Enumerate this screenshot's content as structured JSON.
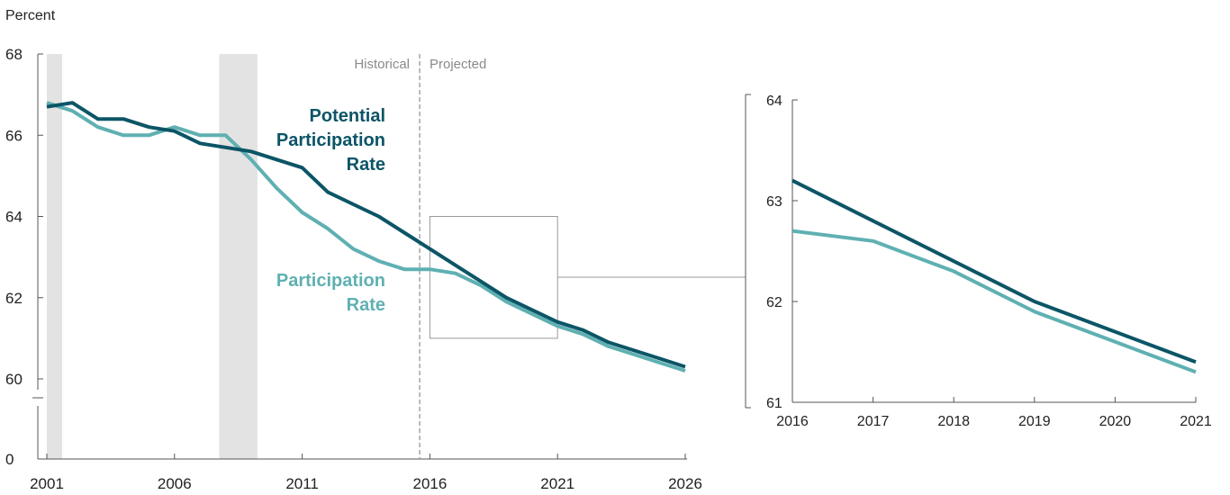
{
  "y_axis_title": "Percent",
  "zone_labels": {
    "historical": "Historical",
    "projected": "Projected"
  },
  "colors": {
    "potential": "#0b5566",
    "participation": "#5fb0b2",
    "recession": "#e3e3e3",
    "axis": "#555555",
    "divider": "#777777",
    "zoom_box": "#9a9a9a"
  },
  "chart_data": [
    {
      "type": "line",
      "title": "",
      "xlabel": "",
      "ylabel": "Percent",
      "x_ticks": [
        2001,
        2006,
        2011,
        2016,
        2021,
        2026
      ],
      "y_ticks": [
        0,
        60,
        62,
        64,
        66,
        68
      ],
      "ylim_visible": [
        60,
        68
      ],
      "axis_break": "between 0 and 60",
      "recession_shading": [
        [
          2001.0,
          2001.6
        ],
        [
          2007.75,
          2009.25
        ]
      ],
      "divider_x": 2015.6,
      "zoom_box": {
        "x": [
          2016,
          2021
        ],
        "y": [
          61,
          64
        ]
      },
      "x": [
        2001,
        2002,
        2003,
        2004,
        2005,
        2006,
        2007,
        2008,
        2009,
        2010,
        2011,
        2012,
        2013,
        2014,
        2015,
        2016,
        2017,
        2018,
        2019,
        2020,
        2021,
        2022,
        2023,
        2024,
        2025,
        2026
      ],
      "series": [
        {
          "name": "Potential Participation Rate",
          "label_lines": [
            "Potential",
            "Participation",
            "Rate"
          ],
          "values": [
            66.7,
            66.8,
            66.4,
            66.4,
            66.2,
            66.1,
            65.8,
            65.7,
            65.6,
            65.4,
            65.2,
            64.6,
            64.3,
            64.0,
            63.6,
            63.2,
            62.8,
            62.4,
            62.0,
            61.7,
            61.4,
            61.2,
            60.9,
            60.7,
            60.5,
            60.3
          ]
        },
        {
          "name": "Participation Rate",
          "label_lines": [
            "Participation",
            "Rate"
          ],
          "values": [
            66.8,
            66.6,
            66.2,
            66.0,
            66.0,
            66.2,
            66.0,
            66.0,
            65.4,
            64.7,
            64.1,
            63.7,
            63.2,
            62.9,
            62.7,
            62.7,
            62.6,
            62.3,
            61.9,
            61.6,
            61.3,
            61.1,
            60.8,
            60.6,
            60.4,
            60.2
          ]
        }
      ]
    },
    {
      "type": "line",
      "title": "",
      "xlabel": "",
      "ylabel": "",
      "x_ticks": [
        2016,
        2017,
        2018,
        2019,
        2020,
        2021
      ],
      "y_ticks": [
        61,
        62,
        63,
        64
      ],
      "ylim": [
        61,
        64
      ],
      "x": [
        2016,
        2017,
        2018,
        2019,
        2020,
        2021
      ],
      "series": [
        {
          "values": [
            63.2,
            62.8,
            62.4,
            62.0,
            61.7,
            61.4
          ]
        },
        {
          "values": [
            62.7,
            62.6,
            62.3,
            61.9,
            61.6,
            61.3
          ]
        }
      ]
    }
  ]
}
